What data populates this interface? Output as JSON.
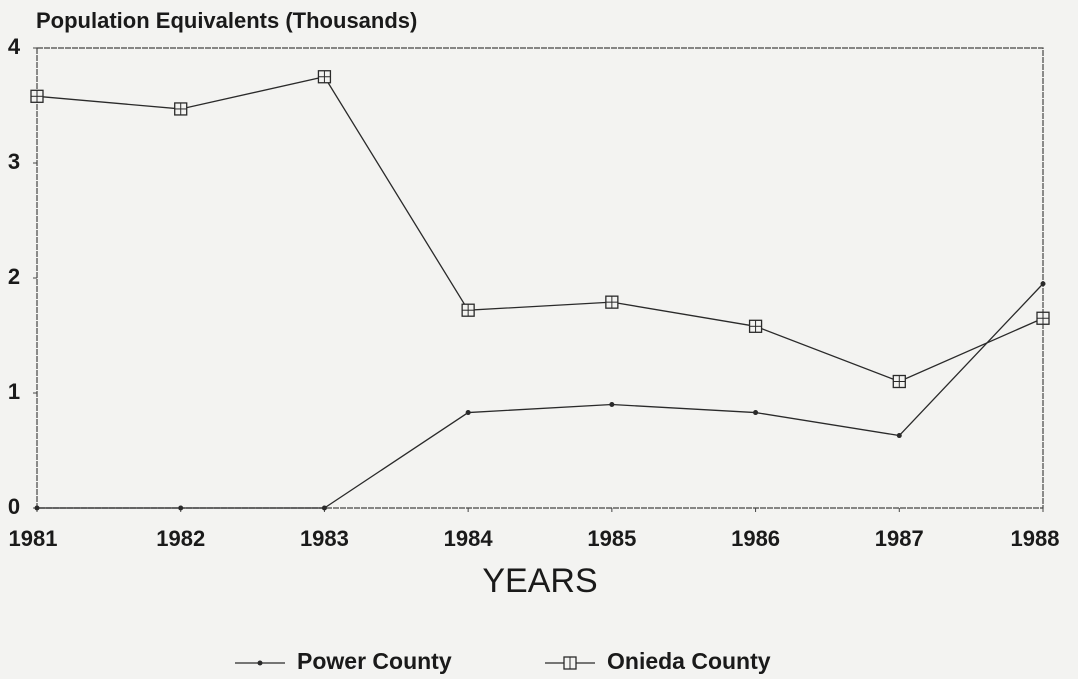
{
  "chart_data": {
    "type": "line",
    "title": "Population Equivalents (Thousands)",
    "xlabel": "YEARS",
    "x": [
      1981,
      1982,
      1983,
      1984,
      1985,
      1986,
      1987,
      1988
    ],
    "xlim": [
      1981,
      1988
    ],
    "xticks": [
      1981,
      1982,
      1983,
      1984,
      1985,
      1986,
      1987,
      1988
    ],
    "ylim": [
      0,
      4
    ],
    "yticks": [
      0,
      1,
      2,
      3,
      4
    ],
    "series": [
      {
        "name": "Power County",
        "color": "#2a2a2a",
        "marker": "dot",
        "values": [
          0,
          0,
          0,
          0.83,
          0.9,
          0.83,
          0.63,
          1.95
        ]
      },
      {
        "name": "Onieda County",
        "color": "#2a2a2a",
        "marker": "square",
        "values": [
          3.58,
          3.47,
          3.75,
          1.72,
          1.79,
          1.58,
          1.1,
          1.65
        ]
      }
    ]
  }
}
